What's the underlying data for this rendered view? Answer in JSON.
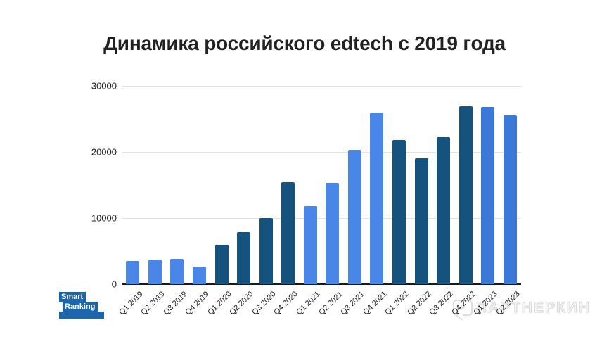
{
  "title": "Динамика российского edtech с 2019 года",
  "chart_data": {
    "type": "bar",
    "title": "Динамика российского edtech с 2019 года",
    "categories": [
      "Q1 2019",
      "Q2 2019",
      "Q3 2019",
      "Q4 2019",
      "Q1 2020",
      "Q2 2020",
      "Q3 2020",
      "Q4 2020",
      "Q1 2021",
      "Q2 2021",
      "Q3 2021",
      "Q4 2021",
      "Q1 2022",
      "Q2 2022",
      "Q3 2022",
      "Q4 2022",
      "Q1 2023",
      "Q2 2023"
    ],
    "values": [
      3500,
      3700,
      3800,
      2700,
      6000,
      7900,
      10000,
      15400,
      11800,
      15300,
      20300,
      26000,
      21800,
      19000,
      22200,
      26900,
      26800,
      25500
    ],
    "bar_colors": [
      "#4a86e8",
      "#4a86e8",
      "#4a86e8",
      "#4a86e8",
      "#15537e",
      "#15537e",
      "#15537e",
      "#15537e",
      "#4a86e8",
      "#4a86e8",
      "#4a86e8",
      "#4a86e8",
      "#15537e",
      "#15537e",
      "#15537e",
      "#15537e",
      "#3c78d8",
      "#3c78d8"
    ],
    "xlabel": "",
    "ylabel": "",
    "ylim": [
      0,
      30000
    ],
    "yticks": [
      0,
      10000,
      20000,
      30000
    ],
    "grid": true,
    "legend_position": "none"
  },
  "colors": {
    "bar_light_blue": "#4a86e8",
    "bar_dark_blue": "#15537e",
    "bar_medium_blue": "#3c78d8",
    "gridline": "#e3e3e3",
    "axis_line": "#1a1a1a",
    "logo_blue": "#1b66ad"
  },
  "logo": {
    "line1": "Smart",
    "line2": "Ranking"
  },
  "watermark": {
    "symbol": "₽",
    "text": "ПАРТНЕРКИН"
  }
}
